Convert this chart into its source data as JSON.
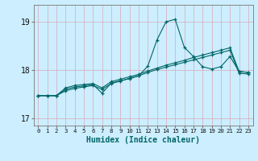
{
  "x": [
    0,
    1,
    2,
    3,
    4,
    5,
    6,
    7,
    8,
    9,
    10,
    11,
    12,
    13,
    14,
    15,
    16,
    17,
    18,
    19,
    20,
    21,
    22,
    23
  ],
  "line_main": [
    17.47,
    17.47,
    17.47,
    17.6,
    17.65,
    17.67,
    17.7,
    17.52,
    17.73,
    17.78,
    17.82,
    17.88,
    18.08,
    18.62,
    19.0,
    19.05,
    18.47,
    18.28,
    18.07,
    18.02,
    18.07,
    18.28,
    17.97,
    17.95
  ],
  "line_upper": [
    17.47,
    17.47,
    17.47,
    17.63,
    17.68,
    17.7,
    17.72,
    17.63,
    17.76,
    17.81,
    17.86,
    17.91,
    17.98,
    18.04,
    18.1,
    18.15,
    18.2,
    18.26,
    18.31,
    18.36,
    18.41,
    18.46,
    17.97,
    17.95
  ],
  "line_lower": [
    17.47,
    17.47,
    17.47,
    17.57,
    17.62,
    17.65,
    17.68,
    17.6,
    17.72,
    17.77,
    17.83,
    17.88,
    17.95,
    18.01,
    18.06,
    18.11,
    18.16,
    18.21,
    18.26,
    18.31,
    18.36,
    18.41,
    17.93,
    17.92
  ],
  "line_color": "#006666",
  "bg_color": "#cceeff",
  "grid_color_v": "#d8a8b8",
  "grid_color_h": "#d8a8b8",
  "xlabel": "Humidex (Indice chaleur)",
  "xlabel_fontsize": 7,
  "ylabel_ticks": [
    17,
    18,
    19
  ],
  "xlim": [
    -0.5,
    23.5
  ],
  "ylim": [
    16.85,
    19.35
  ]
}
